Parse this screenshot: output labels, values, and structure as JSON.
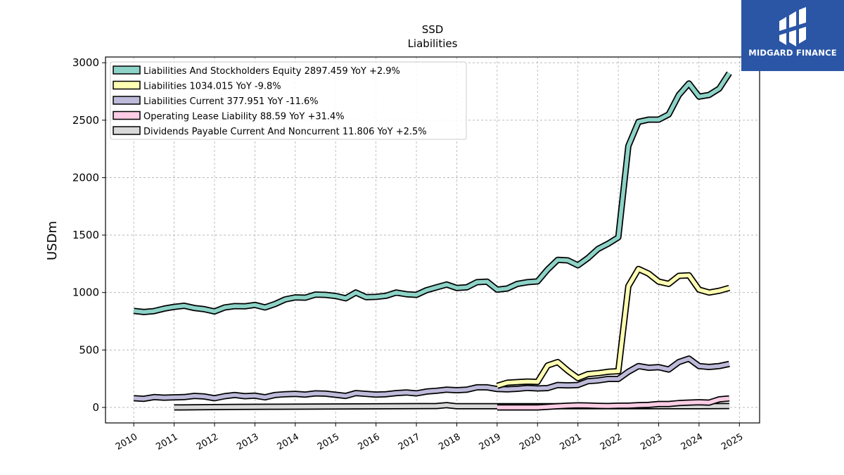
{
  "brand": {
    "name": "MIDGARD FINANCE",
    "background": "#2b56a6"
  },
  "chart_data": {
    "type": "line",
    "title": "SSD",
    "subtitle": "Liabilities",
    "ylabel": "USDm",
    "xlabel": "",
    "xlim": [
      2009.3,
      2025.5
    ],
    "ylim": [
      -135,
      3050
    ],
    "yticks": [
      0,
      500,
      1000,
      1500,
      2000,
      2500,
      3000
    ],
    "xticks": [
      "2010",
      "2011",
      "2012",
      "2013",
      "2014",
      "2015",
      "2016",
      "2017",
      "2018",
      "2019",
      "2020",
      "2021",
      "2022",
      "2023",
      "2024",
      "2025"
    ],
    "grid": true,
    "legend_position": "top-left",
    "series": [
      {
        "name": "Liabilities And Stockholders Equity",
        "legend_value": "2897.459 YoY +2.9%",
        "color": "#8dd3c7",
        "points": [
          [
            2010.0,
            840
          ],
          [
            2010.25,
            830
          ],
          [
            2010.5,
            838
          ],
          [
            2010.75,
            860
          ],
          [
            2011.0,
            875
          ],
          [
            2011.25,
            885
          ],
          [
            2011.5,
            865
          ],
          [
            2011.75,
            855
          ],
          [
            2012.0,
            835
          ],
          [
            2012.25,
            870
          ],
          [
            2012.5,
            882
          ],
          [
            2012.75,
            880
          ],
          [
            2013.0,
            892
          ],
          [
            2013.25,
            870
          ],
          [
            2013.5,
            900
          ],
          [
            2013.75,
            940
          ],
          [
            2014.0,
            958
          ],
          [
            2014.25,
            955
          ],
          [
            2014.5,
            982
          ],
          [
            2014.75,
            980
          ],
          [
            2015.0,
            970
          ],
          [
            2015.25,
            950
          ],
          [
            2015.5,
            1000
          ],
          [
            2015.75,
            960
          ],
          [
            2016.0,
            962
          ],
          [
            2016.25,
            972
          ],
          [
            2016.5,
            1000
          ],
          [
            2016.75,
            985
          ],
          [
            2017.0,
            980
          ],
          [
            2017.25,
            1020
          ],
          [
            2017.5,
            1045
          ],
          [
            2017.75,
            1070
          ],
          [
            2018.0,
            1040
          ],
          [
            2018.25,
            1045
          ],
          [
            2018.5,
            1090
          ],
          [
            2018.75,
            1095
          ],
          [
            2019.0,
            1025
          ],
          [
            2019.25,
            1035
          ],
          [
            2019.5,
            1075
          ],
          [
            2019.75,
            1090
          ],
          [
            2020.0,
            1097
          ],
          [
            2020.25,
            1200
          ],
          [
            2020.5,
            1285
          ],
          [
            2020.75,
            1280
          ],
          [
            2021.0,
            1237
          ],
          [
            2021.25,
            1300
          ],
          [
            2021.5,
            1380
          ],
          [
            2021.75,
            1425
          ],
          [
            2022.0,
            1480
          ],
          [
            2022.25,
            2275
          ],
          [
            2022.5,
            2485
          ],
          [
            2022.75,
            2505
          ],
          [
            2023.0,
            2505
          ],
          [
            2023.25,
            2550
          ],
          [
            2023.5,
            2720
          ],
          [
            2023.75,
            2820
          ],
          [
            2024.0,
            2705
          ],
          [
            2024.25,
            2720
          ],
          [
            2024.5,
            2775
          ],
          [
            2024.75,
            2910
          ]
        ]
      },
      {
        "name": "Liabilities",
        "legend_value": "1034.015 YoY -9.8%",
        "color": "#ffffb3",
        "points": [
          [
            2019.0,
            188
          ],
          [
            2019.25,
            215
          ],
          [
            2019.5,
            220
          ],
          [
            2019.75,
            225
          ],
          [
            2020.0,
            222
          ],
          [
            2020.25,
            365
          ],
          [
            2020.5,
            395
          ],
          [
            2020.75,
            320
          ],
          [
            2021.0,
            255
          ],
          [
            2021.25,
            290
          ],
          [
            2021.5,
            298
          ],
          [
            2021.75,
            310
          ],
          [
            2022.0,
            315
          ],
          [
            2022.25,
            1055
          ],
          [
            2022.5,
            1205
          ],
          [
            2022.75,
            1165
          ],
          [
            2023.0,
            1095
          ],
          [
            2023.25,
            1075
          ],
          [
            2023.5,
            1145
          ],
          [
            2023.75,
            1150
          ],
          [
            2024.0,
            1025
          ],
          [
            2024.25,
            1000
          ],
          [
            2024.5,
            1015
          ],
          [
            2024.75,
            1040
          ]
        ]
      },
      {
        "name": "Liabilities Current",
        "legend_value": "377.951 YoY -11.6%",
        "color": "#bebada",
        "points": [
          [
            2010.0,
            80
          ],
          [
            2010.25,
            75
          ],
          [
            2010.5,
            90
          ],
          [
            2010.75,
            85
          ],
          [
            2011.0,
            88
          ],
          [
            2011.25,
            90
          ],
          [
            2011.5,
            100
          ],
          [
            2011.75,
            95
          ],
          [
            2012.0,
            80
          ],
          [
            2012.25,
            98
          ],
          [
            2012.5,
            108
          ],
          [
            2012.75,
            98
          ],
          [
            2013.0,
            102
          ],
          [
            2013.25,
            88
          ],
          [
            2013.5,
            108
          ],
          [
            2013.75,
            115
          ],
          [
            2014.0,
            118
          ],
          [
            2014.25,
            112
          ],
          [
            2014.5,
            122
          ],
          [
            2014.75,
            120
          ],
          [
            2015.0,
            110
          ],
          [
            2015.25,
            100
          ],
          [
            2015.5,
            125
          ],
          [
            2015.75,
            118
          ],
          [
            2016.0,
            112
          ],
          [
            2016.25,
            115
          ],
          [
            2016.5,
            125
          ],
          [
            2016.75,
            130
          ],
          [
            2017.0,
            122
          ],
          [
            2017.25,
            138
          ],
          [
            2017.5,
            145
          ],
          [
            2017.75,
            155
          ],
          [
            2018.0,
            150
          ],
          [
            2018.25,
            155
          ],
          [
            2018.5,
            175
          ],
          [
            2018.75,
            175
          ],
          [
            2019.0,
            160
          ],
          [
            2019.25,
            158
          ],
          [
            2019.5,
            162
          ],
          [
            2019.75,
            170
          ],
          [
            2020.0,
            165
          ],
          [
            2020.25,
            168
          ],
          [
            2020.5,
            195
          ],
          [
            2020.75,
            192
          ],
          [
            2021.0,
            195
          ],
          [
            2021.25,
            228
          ],
          [
            2021.5,
            235
          ],
          [
            2021.75,
            248
          ],
          [
            2022.0,
            248
          ],
          [
            2022.25,
            310
          ],
          [
            2022.5,
            360
          ],
          [
            2022.75,
            345
          ],
          [
            2023.0,
            350
          ],
          [
            2023.25,
            330
          ],
          [
            2023.5,
            395
          ],
          [
            2023.75,
            425
          ],
          [
            2024.0,
            360
          ],
          [
            2024.25,
            352
          ],
          [
            2024.5,
            360
          ],
          [
            2024.75,
            378
          ]
        ]
      },
      {
        "name": "Operating Lease Liability",
        "legend_value": "88.59 YoY +31.4%",
        "color": "#fccde5",
        "points": [
          [
            2019.0,
            0
          ],
          [
            2019.25,
            0
          ],
          [
            2019.5,
            0
          ],
          [
            2019.75,
            0
          ],
          [
            2020.0,
            0
          ],
          [
            2020.25,
            5
          ],
          [
            2020.5,
            10
          ],
          [
            2020.75,
            15
          ],
          [
            2021.0,
            18
          ],
          [
            2021.25,
            16
          ],
          [
            2021.5,
            14
          ],
          [
            2021.75,
            12
          ],
          [
            2022.0,
            15
          ],
          [
            2022.25,
            15
          ],
          [
            2022.5,
            20
          ],
          [
            2022.75,
            22
          ],
          [
            2023.0,
            30
          ],
          [
            2023.25,
            30
          ],
          [
            2023.5,
            38
          ],
          [
            2023.75,
            42
          ],
          [
            2024.0,
            45
          ],
          [
            2024.25,
            42
          ],
          [
            2024.5,
            70
          ],
          [
            2024.75,
            78
          ]
        ]
      },
      {
        "name": "Dividends Payable Current And Noncurrent",
        "legend_value": "11.806 YoY +2.5%",
        "color": "#d9d9d9",
        "points": [
          [
            2011.0,
            0
          ],
          [
            2011.75,
            2
          ],
          [
            2012.5,
            4
          ],
          [
            2013.5,
            6
          ],
          [
            2014.5,
            8
          ],
          [
            2015.5,
            9
          ],
          [
            2016.5,
            11
          ],
          [
            2017.5,
            12
          ],
          [
            2017.75,
            20
          ],
          [
            2018.0,
            10
          ],
          [
            2019.0,
            10
          ],
          [
            2020.0,
            10
          ],
          [
            2021.0,
            10
          ],
          [
            2022.0,
            10
          ],
          [
            2023.0,
            11
          ],
          [
            2024.0,
            11
          ],
          [
            2024.75,
            12
          ]
        ]
      }
    ]
  }
}
